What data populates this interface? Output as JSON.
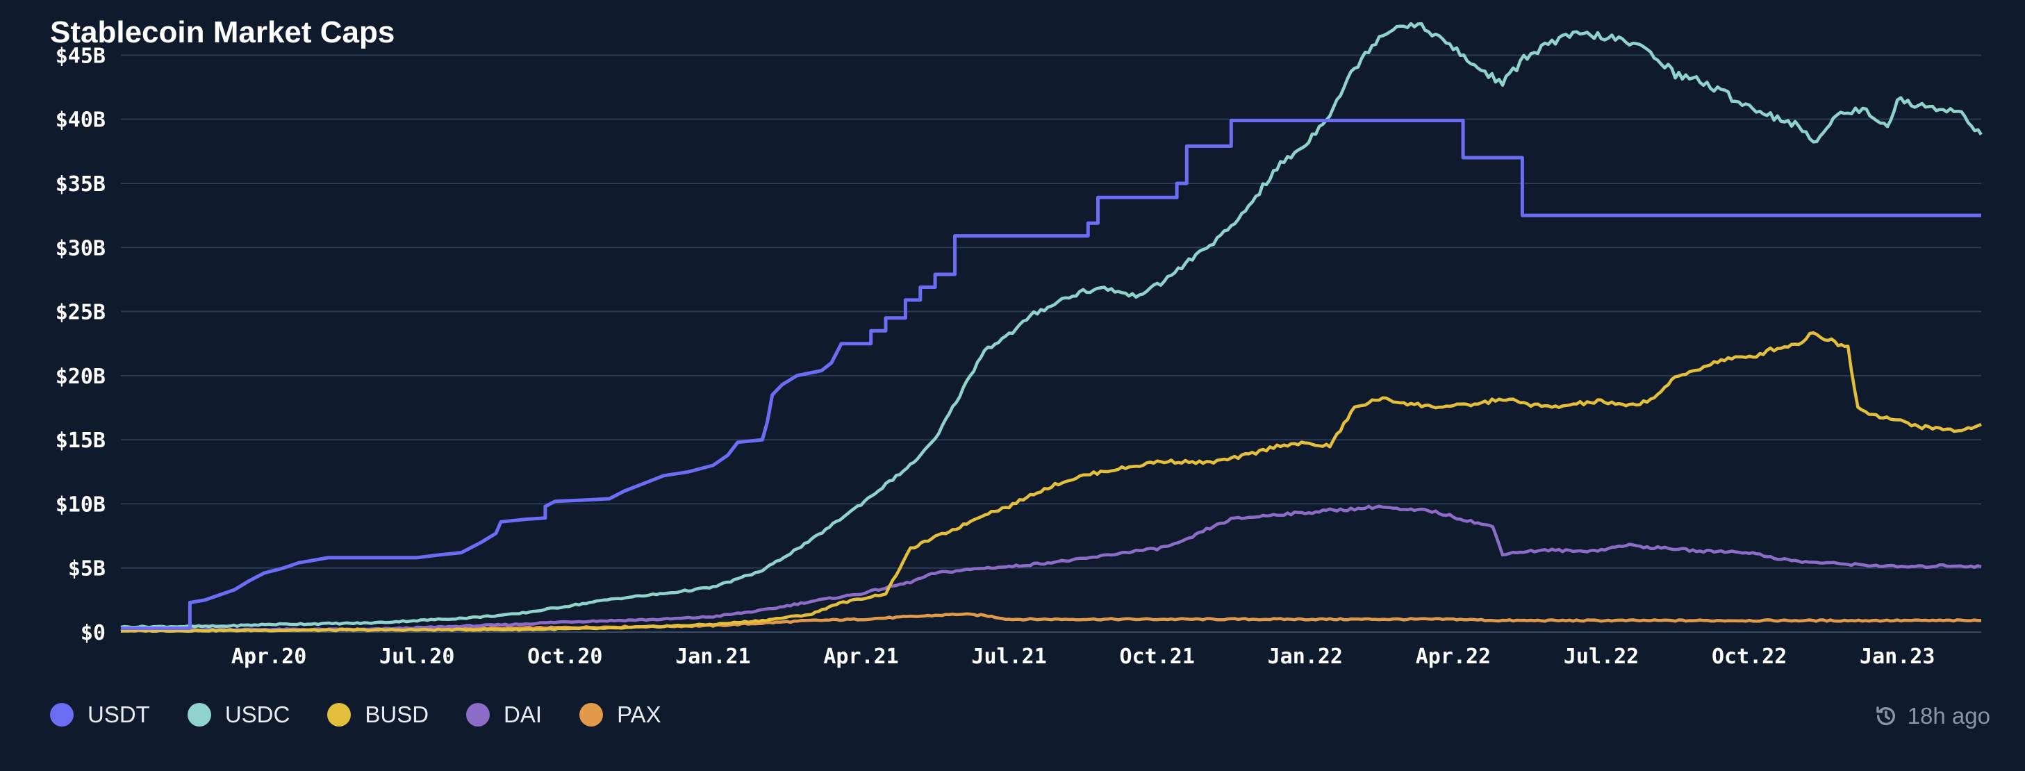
{
  "page": {
    "background": "#0f1a2c"
  },
  "chart_data": {
    "type": "line",
    "title": "Stablecoin Market Caps",
    "xlabel": "",
    "ylabel": "",
    "ylim": [
      0,
      48
    ],
    "y_unit": "B",
    "y_ticks": [
      0,
      5,
      10,
      15,
      20,
      25,
      30,
      35,
      40,
      45
    ],
    "y_tick_labels": [
      "$0",
      "$5B",
      "$10B",
      "$15B",
      "$20B",
      "$25B",
      "$30B",
      "$35B",
      "$40B",
      "$45B"
    ],
    "x_domain": [
      0,
      37.7
    ],
    "x_ticks": [
      {
        "pos": 3,
        "label": "Apr.20"
      },
      {
        "pos": 6,
        "label": "Jul.20"
      },
      {
        "pos": 9,
        "label": "Oct.20"
      },
      {
        "pos": 12,
        "label": "Jan.21"
      },
      {
        "pos": 15,
        "label": "Apr.21"
      },
      {
        "pos": 18,
        "label": "Jul.21"
      },
      {
        "pos": 21,
        "label": "Oct.21"
      },
      {
        "pos": 24,
        "label": "Jan.22"
      },
      {
        "pos": 27,
        "label": "Apr.22"
      },
      {
        "pos": 30,
        "label": "Jul.22"
      },
      {
        "pos": 33,
        "label": "Oct.22"
      },
      {
        "pos": 36,
        "label": "Jan.23"
      }
    ],
    "x_unit_note": "months since Jan.20",
    "grid": true,
    "legend_position": "bottom-left",
    "series": [
      {
        "name": "USDT",
        "color": "#6b6ef5",
        "step": true,
        "points": [
          [
            0,
            0.3
          ],
          [
            1.4,
            0.3
          ],
          [
            1.4,
            2.3
          ],
          [
            1.7,
            2.5
          ],
          [
            2.0,
            2.9
          ],
          [
            2.3,
            3.3
          ],
          [
            2.6,
            4.0
          ],
          [
            2.9,
            4.6
          ],
          [
            3.3,
            5.0
          ],
          [
            3.6,
            5.4
          ],
          [
            3.9,
            5.6
          ],
          [
            4.2,
            5.8
          ],
          [
            6,
            5.8
          ],
          [
            6.4,
            6.0
          ],
          [
            6.9,
            6.2
          ],
          [
            7.3,
            7.0
          ],
          [
            7.6,
            7.7
          ],
          [
            7.7,
            8.6
          ],
          [
            8.2,
            8.8
          ],
          [
            8.6,
            8.9
          ],
          [
            8.6,
            9.8
          ],
          [
            8.8,
            10.2
          ],
          [
            9.4,
            10.3
          ],
          [
            9.9,
            10.4
          ],
          [
            10.2,
            11.0
          ],
          [
            10.6,
            11.6
          ],
          [
            11.0,
            12.2
          ],
          [
            11.5,
            12.5
          ],
          [
            12.0,
            13.0
          ],
          [
            12.3,
            13.8
          ],
          [
            12.5,
            14.8
          ],
          [
            13.0,
            15.0
          ],
          [
            13.1,
            16.4
          ],
          [
            13.2,
            18.5
          ],
          [
            13.4,
            19.3
          ],
          [
            13.7,
            20.0
          ],
          [
            14.2,
            20.4
          ],
          [
            14.4,
            21.0
          ],
          [
            14.6,
            22.5
          ],
          [
            15.2,
            22.5
          ],
          [
            15.2,
            23.5
          ],
          [
            15.5,
            23.5
          ],
          [
            15.5,
            24.5
          ],
          [
            15.9,
            24.5
          ],
          [
            15.9,
            25.9
          ],
          [
            16.2,
            25.9
          ],
          [
            16.2,
            26.9
          ],
          [
            16.5,
            26.9
          ],
          [
            16.5,
            27.9
          ],
          [
            16.9,
            27.9
          ],
          [
            16.9,
            30.9
          ],
          [
            19.6,
            30.9
          ],
          [
            19.6,
            31.9
          ],
          [
            19.8,
            31.9
          ],
          [
            19.8,
            33.9
          ],
          [
            21.4,
            33.9
          ],
          [
            21.4,
            35.0
          ],
          [
            21.6,
            35.0
          ],
          [
            21.6,
            37.9
          ],
          [
            22.5,
            37.9
          ],
          [
            22.5,
            39.9
          ],
          [
            27.2,
            39.9
          ],
          [
            27.2,
            37.0
          ],
          [
            28.4,
            37.0
          ],
          [
            28.4,
            32.5
          ],
          [
            37.7,
            32.5
          ]
        ]
      },
      {
        "name": "USDC",
        "color": "#8fd3cc",
        "points": [
          [
            0,
            0.4
          ],
          [
            2,
            0.45
          ],
          [
            3,
            0.6
          ],
          [
            5,
            0.7
          ],
          [
            6,
            0.9
          ],
          [
            7,
            1.1
          ],
          [
            8,
            1.4
          ],
          [
            9,
            2.0
          ],
          [
            10,
            2.6
          ],
          [
            11,
            3.0
          ],
          [
            12,
            3.5
          ],
          [
            13,
            4.8
          ],
          [
            14,
            7.2
          ],
          [
            15,
            10.0
          ],
          [
            16,
            13.0
          ],
          [
            16.5,
            15.0
          ],
          [
            17,
            18.5
          ],
          [
            17.5,
            22.0
          ],
          [
            18,
            23.2
          ],
          [
            18.5,
            24.8
          ],
          [
            19,
            25.8
          ],
          [
            19.5,
            26.6
          ],
          [
            20,
            26.8
          ],
          [
            20.5,
            26.2
          ],
          [
            21,
            27.0
          ],
          [
            21.5,
            28.5
          ],
          [
            22,
            30.0
          ],
          [
            22.5,
            31.5
          ],
          [
            23,
            34.0
          ],
          [
            23.5,
            36.5
          ],
          [
            24,
            38.0
          ],
          [
            24.5,
            40.5
          ],
          [
            25,
            44.0
          ],
          [
            25.5,
            46.5
          ],
          [
            26,
            47.5
          ],
          [
            26.5,
            47.0
          ],
          [
            27,
            45.5
          ],
          [
            27.5,
            44.0
          ],
          [
            28,
            42.8
          ],
          [
            28.5,
            45.0
          ],
          [
            29,
            46.0
          ],
          [
            29.5,
            46.6
          ],
          [
            30,
            46.5
          ],
          [
            30.5,
            46.0
          ],
          [
            31,
            45.3
          ],
          [
            31.5,
            43.5
          ],
          [
            32,
            43.0
          ],
          [
            32.5,
            42.0
          ],
          [
            33,
            41.0
          ],
          [
            33.5,
            40.2
          ],
          [
            34,
            39.5
          ],
          [
            34.3,
            38.0
          ],
          [
            34.7,
            40.2
          ],
          [
            35.3,
            40.8
          ],
          [
            35.8,
            39.5
          ],
          [
            36,
            41.5
          ],
          [
            36.5,
            41.0
          ],
          [
            37,
            40.8
          ],
          [
            37.3,
            40.5
          ],
          [
            37.7,
            38.8
          ]
        ]
      },
      {
        "name": "BUSD",
        "color": "#e3bf3c",
        "points": [
          [
            0,
            0.1
          ],
          [
            8,
            0.2
          ],
          [
            10,
            0.3
          ],
          [
            12,
            0.6
          ],
          [
            13,
            0.9
          ],
          [
            14,
            1.4
          ],
          [
            14.5,
            2.2
          ],
          [
            15,
            2.6
          ],
          [
            15.5,
            3.0
          ],
          [
            16,
            6.5
          ],
          [
            16.5,
            7.4
          ],
          [
            17,
            8.2
          ],
          [
            17.5,
            9.2
          ],
          [
            18,
            9.8
          ],
          [
            18.5,
            10.8
          ],
          [
            19,
            11.6
          ],
          [
            19.5,
            12.2
          ],
          [
            20,
            12.6
          ],
          [
            20.5,
            12.9
          ],
          [
            21,
            13.3
          ],
          [
            21.5,
            13.3
          ],
          [
            22,
            13.2
          ],
          [
            22.5,
            13.5
          ],
          [
            23,
            14.0
          ],
          [
            23.5,
            14.6
          ],
          [
            24,
            14.7
          ],
          [
            24.5,
            14.5
          ],
          [
            25,
            17.5
          ],
          [
            25.5,
            18.2
          ],
          [
            26,
            17.9
          ],
          [
            26.5,
            17.6
          ],
          [
            27,
            17.6
          ],
          [
            27.5,
            17.8
          ],
          [
            28,
            18.2
          ],
          [
            28.5,
            17.8
          ],
          [
            29,
            17.5
          ],
          [
            29.5,
            17.8
          ],
          [
            30,
            18.0
          ],
          [
            30.5,
            17.6
          ],
          [
            31,
            18.1
          ],
          [
            31.5,
            19.8
          ],
          [
            32,
            20.6
          ],
          [
            32.5,
            21.3
          ],
          [
            33,
            21.4
          ],
          [
            33.5,
            22.1
          ],
          [
            34,
            22.5
          ],
          [
            34.3,
            23.4
          ],
          [
            34.6,
            22.8
          ],
          [
            35,
            22.2
          ],
          [
            35.2,
            17.5
          ],
          [
            35.5,
            17.0
          ],
          [
            36,
            16.5
          ],
          [
            36.5,
            16.0
          ],
          [
            37,
            15.8
          ],
          [
            37.3,
            15.7
          ],
          [
            37.7,
            16.2
          ]
        ]
      },
      {
        "name": "DAI",
        "color": "#8d6cc8",
        "points": [
          [
            0,
            0.2
          ],
          [
            5,
            0.2
          ],
          [
            8,
            0.6
          ],
          [
            9,
            0.8
          ],
          [
            10,
            0.9
          ],
          [
            11,
            1.0
          ],
          [
            12,
            1.2
          ],
          [
            13,
            1.7
          ],
          [
            14,
            2.4
          ],
          [
            15,
            3.0
          ],
          [
            16,
            3.9
          ],
          [
            16.5,
            4.6
          ],
          [
            17,
            4.8
          ],
          [
            17.5,
            5.0
          ],
          [
            18,
            5.1
          ],
          [
            18.5,
            5.3
          ],
          [
            19,
            5.5
          ],
          [
            19.5,
            5.7
          ],
          [
            20,
            6.0
          ],
          [
            20.5,
            6.3
          ],
          [
            21,
            6.5
          ],
          [
            21.5,
            7.0
          ],
          [
            22,
            8.0
          ],
          [
            22.5,
            8.8
          ],
          [
            23,
            9.0
          ],
          [
            23.5,
            9.2
          ],
          [
            24,
            9.3
          ],
          [
            24.5,
            9.5
          ],
          [
            25,
            9.6
          ],
          [
            25.5,
            9.8
          ],
          [
            26,
            9.5
          ],
          [
            26.5,
            9.5
          ],
          [
            27,
            9.0
          ],
          [
            27.5,
            8.5
          ],
          [
            27.8,
            8.2
          ],
          [
            28,
            6.1
          ],
          [
            28.5,
            6.3
          ],
          [
            29,
            6.4
          ],
          [
            29.5,
            6.3
          ],
          [
            30,
            6.4
          ],
          [
            30.5,
            6.8
          ],
          [
            31,
            6.6
          ],
          [
            31.5,
            6.5
          ],
          [
            32,
            6.3
          ],
          [
            32.5,
            6.3
          ],
          [
            33,
            6.2
          ],
          [
            33.5,
            5.8
          ],
          [
            34,
            5.5
          ],
          [
            34.5,
            5.4
          ],
          [
            35,
            5.3
          ],
          [
            35.5,
            5.2
          ],
          [
            36,
            5.1
          ],
          [
            36.5,
            5.1
          ],
          [
            37,
            5.2
          ],
          [
            37.7,
            5.1
          ]
        ]
      },
      {
        "name": "PAX",
        "color": "#e09a49",
        "points": [
          [
            0,
            0.1
          ],
          [
            5,
            0.2
          ],
          [
            8,
            0.3
          ],
          [
            10,
            0.4
          ],
          [
            12,
            0.5
          ],
          [
            13,
            0.7
          ],
          [
            14,
            0.9
          ],
          [
            15,
            1.0
          ],
          [
            16,
            1.2
          ],
          [
            17,
            1.4
          ],
          [
            17.5,
            1.3
          ],
          [
            18,
            1.0
          ],
          [
            19,
            1.0
          ],
          [
            20,
            1.0
          ],
          [
            21,
            1.0
          ],
          [
            22,
            1.0
          ],
          [
            23,
            1.0
          ],
          [
            24,
            1.0
          ],
          [
            25,
            1.0
          ],
          [
            26,
            1.0
          ],
          [
            27,
            1.0
          ],
          [
            28,
            0.9
          ],
          [
            29,
            0.9
          ],
          [
            30,
            0.9
          ],
          [
            31,
            0.9
          ],
          [
            32,
            0.9
          ],
          [
            33,
            0.9
          ],
          [
            34,
            0.9
          ],
          [
            35,
            0.9
          ],
          [
            36,
            0.9
          ],
          [
            37,
            0.9
          ],
          [
            37.7,
            0.9
          ]
        ]
      }
    ]
  },
  "legend": [
    {
      "label": "USDT",
      "color": "#6b6ef5"
    },
    {
      "label": "USDC",
      "color": "#8fd3cc"
    },
    {
      "label": "BUSD",
      "color": "#e3bf3c"
    },
    {
      "label": "DAI",
      "color": "#8d6cc8"
    },
    {
      "label": "PAX",
      "color": "#e09a49"
    }
  ],
  "status": {
    "updated_text": "18h ago",
    "icon": "history-icon"
  }
}
